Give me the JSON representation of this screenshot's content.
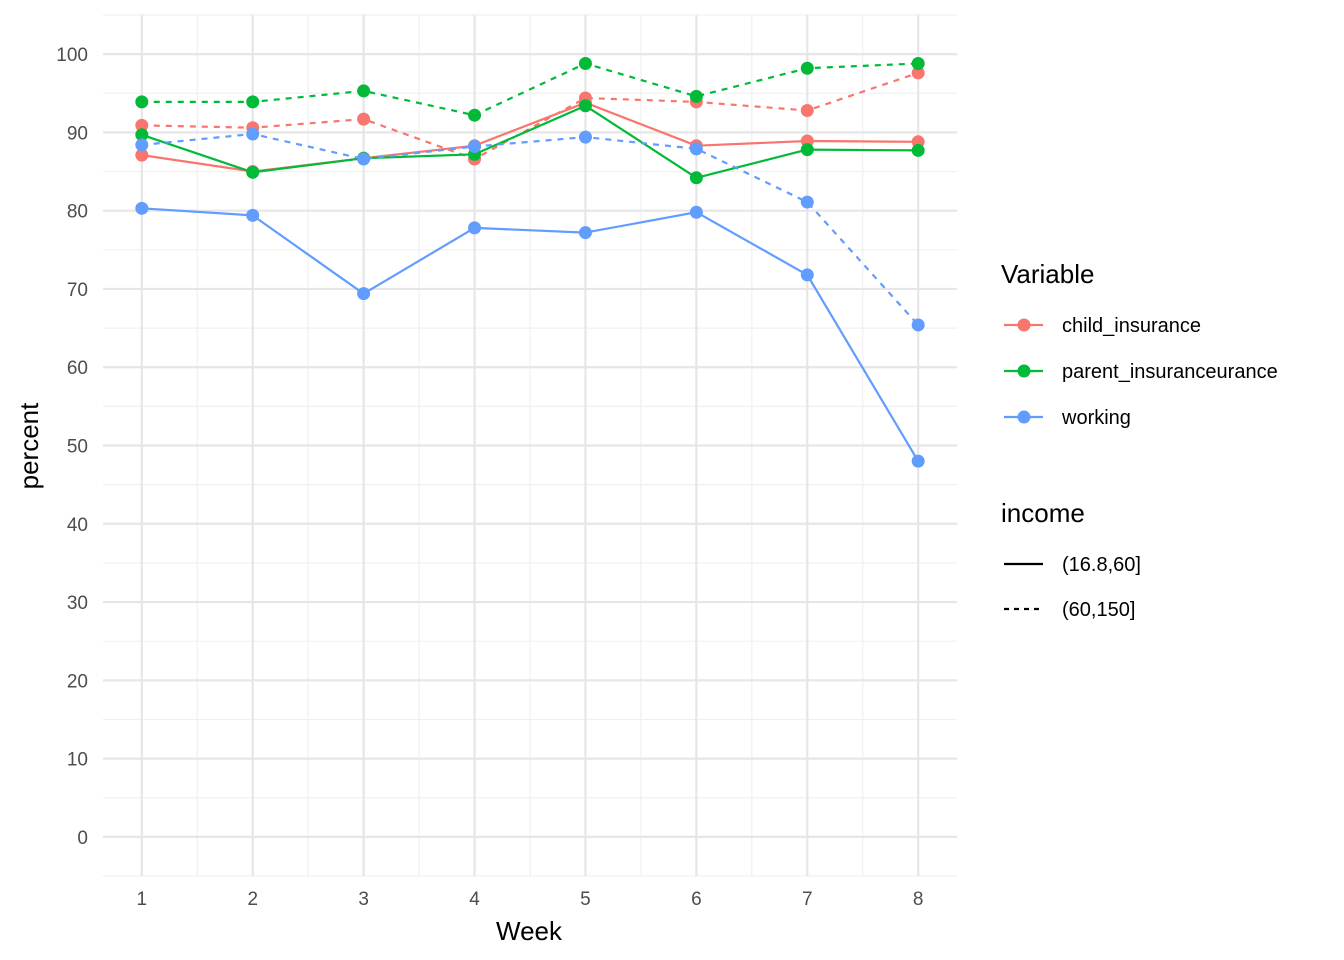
{
  "chart_data": {
    "type": "line",
    "xlabel": "Week",
    "ylabel": "percent",
    "x": [
      1,
      2,
      3,
      4,
      5,
      6,
      7,
      8
    ],
    "xlim": [
      0.65,
      8.35
    ],
    "ylim": [
      -5,
      105
    ],
    "y_ticks": [
      0,
      10,
      20,
      30,
      40,
      50,
      60,
      70,
      80,
      90,
      100
    ],
    "grid": true,
    "legend_position": "right",
    "color_legend": {
      "title": "Variable",
      "entries": [
        {
          "label": "child_insurance",
          "color": "#F8766D"
        },
        {
          "label": "parent_insuranceurance",
          "color": "#00BA38"
        },
        {
          "label": "working",
          "color": "#619CFF"
        }
      ]
    },
    "linetype_legend": {
      "title": "income",
      "entries": [
        {
          "label": "(16.8,60]",
          "linetype": "solid"
        },
        {
          "label": "(60,150]",
          "linetype": "dashed"
        }
      ]
    },
    "series": [
      {
        "variable": 0,
        "income": 0,
        "values": [
          87.1,
          85.0,
          86.7,
          88.3,
          93.8,
          88.3,
          88.9,
          88.8
        ]
      },
      {
        "variable": 0,
        "income": 1,
        "values": [
          90.9,
          90.6,
          91.7,
          86.6,
          94.4,
          93.9,
          92.8,
          97.6
        ]
      },
      {
        "variable": 1,
        "income": 0,
        "values": [
          89.7,
          84.9,
          86.7,
          87.2,
          93.4,
          84.2,
          87.8,
          87.7
        ]
      },
      {
        "variable": 1,
        "income": 1,
        "values": [
          93.9,
          93.9,
          95.3,
          92.2,
          98.8,
          94.6,
          98.2,
          98.8
        ]
      },
      {
        "variable": 2,
        "income": 0,
        "values": [
          80.3,
          79.4,
          69.4,
          77.8,
          77.2,
          79.8,
          71.8,
          48.0
        ]
      },
      {
        "variable": 2,
        "income": 1,
        "values": [
          88.4,
          89.8,
          86.6,
          88.2,
          89.4,
          87.9,
          81.1,
          65.4
        ]
      }
    ]
  }
}
